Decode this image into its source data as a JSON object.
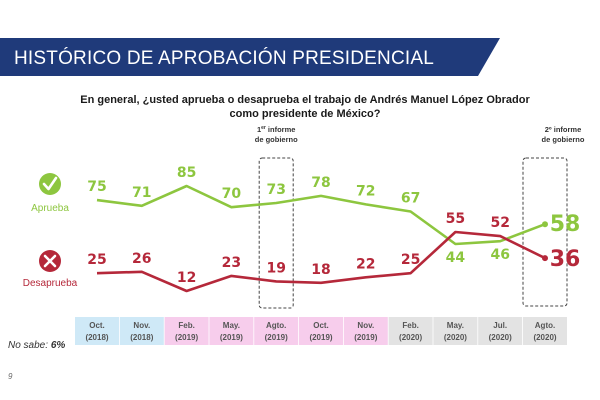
{
  "header": {
    "title": "HISTÓRICO DE APROBACIÓN PRESIDENCIAL"
  },
  "question": {
    "line1": "En general, ¿usted aprueba o desaprueba el trabajo de Andrés Manuel López Obrador",
    "line2": "como presidente de México?"
  },
  "colors": {
    "approve": "#8dc63f",
    "disapprove": "#b5283a",
    "banner": "#1f3a7a"
  },
  "legend": {
    "approve_label": "Aprueba",
    "disapprove_label": "Desaprueba",
    "approve_icon": "check-icon",
    "disapprove_icon": "x-icon"
  },
  "annotations": [
    {
      "sup": "1",
      "sup_suffix": "er",
      "line1": "informe",
      "line2": "de gobierno",
      "category": "Agto. (2019)"
    },
    {
      "sup": "2",
      "sup_suffix": "º",
      "line1": "informe",
      "line2": "de gobierno",
      "category": "Agto. (2020)",
      "prefix": "2º informe"
    }
  ],
  "no_sabe": {
    "label": "No sabe:",
    "value": "6%"
  },
  "page_number": "9",
  "chart_data": {
    "type": "line",
    "categories": [
      [
        "Oct.",
        "(2018)"
      ],
      [
        "Nov.",
        "(2018)"
      ],
      [
        "Feb.",
        "(2019)"
      ],
      [
        "May.",
        "(2019)"
      ],
      [
        "Agto.",
        "(2019)"
      ],
      [
        "Oct.",
        "(2019)"
      ],
      [
        "Nov.",
        "(2019)"
      ],
      [
        "Feb.",
        "(2020)"
      ],
      [
        "May.",
        "(2020)"
      ],
      [
        "Jul.",
        "(2020)"
      ],
      [
        "Agto.",
        "(2020)"
      ]
    ],
    "category_group_colors": [
      "#cfe9f7",
      "#cfe9f7",
      "#f7cdec",
      "#f7cdec",
      "#f7cdec",
      "#f7cdec",
      "#f7cdec",
      "#e3e3e3",
      "#e3e3e3",
      "#e3e3e3",
      "#e3e3e3"
    ],
    "series": [
      {
        "name": "Aprueba",
        "values": [
          75,
          71,
          85,
          70,
          73,
          78,
          72,
          67,
          44,
          46,
          58
        ]
      },
      {
        "name": "Desaprueba",
        "values": [
          25,
          26,
          12,
          23,
          19,
          18,
          22,
          25,
          55,
          52,
          36
        ]
      }
    ]
  }
}
